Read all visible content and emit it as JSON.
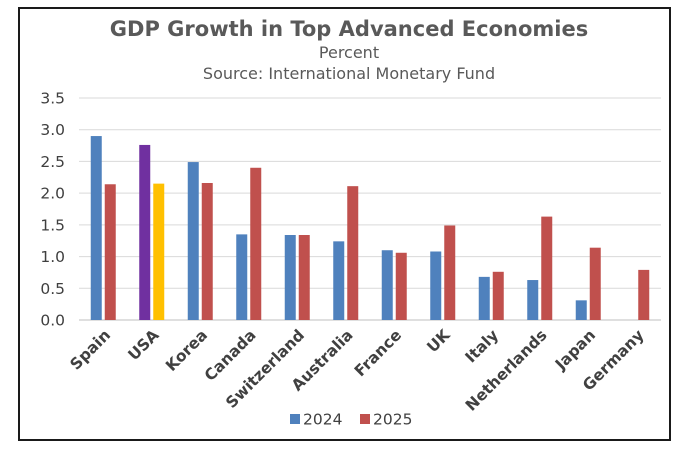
{
  "chart_data": {
    "type": "bar",
    "title": "GDP Growth in Top Advanced Economies",
    "subtitle": "Percent",
    "source": "Source: International Monetary Fund",
    "categories": [
      "Spain",
      "USA",
      "Korea",
      "Canada",
      "Switzerland",
      "Australia",
      "France",
      "UK",
      "Italy",
      "Netherlands",
      "Japan",
      "Germany"
    ],
    "series": [
      {
        "name": "2024",
        "color": "#4f81bd",
        "values": [
          2.9,
          2.76,
          2.49,
          1.35,
          1.34,
          1.24,
          1.1,
          1.08,
          0.68,
          0.63,
          0.31,
          null
        ]
      },
      {
        "name": "2025",
        "color": "#c0504d",
        "values": [
          2.14,
          2.15,
          2.16,
          2.4,
          1.34,
          2.11,
          1.06,
          1.49,
          0.76,
          1.63,
          1.14,
          0.79
        ]
      }
    ],
    "highlight": {
      "category": "USA",
      "colors": {
        "2024": "#7030a0",
        "2025": "#ffc000"
      }
    },
    "ylim": [
      0,
      3.5
    ],
    "yticks": [
      "0.0",
      "0.5",
      "1.0",
      "1.5",
      "2.0",
      "2.5",
      "3.0",
      "3.5"
    ],
    "grid": true,
    "legend": "bottom",
    "xlabel": "",
    "ylabel": ""
  }
}
